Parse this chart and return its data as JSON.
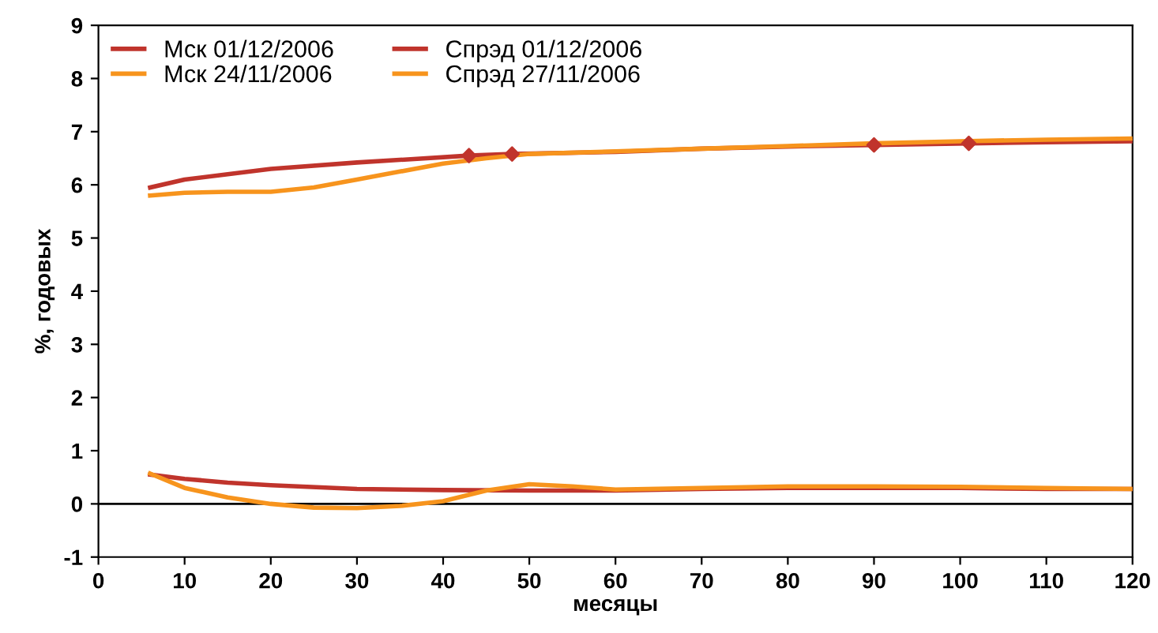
{
  "chart_data": {
    "type": "line",
    "xlabel": "месяцы",
    "ylabel": "%, годовых",
    "xlim": [
      0,
      120
    ],
    "xticks": [
      0,
      10,
      20,
      30,
      40,
      50,
      60,
      70,
      80,
      90,
      100,
      110,
      120
    ],
    "ylim": [
      -1,
      9
    ],
    "yticks": [
      -1,
      0,
      1,
      2,
      3,
      4,
      5,
      6,
      7,
      8,
      9
    ],
    "grid": false,
    "legend": "top left",
    "marker": "none",
    "line_style": "solid",
    "ref_lines": [
      {
        "axis": "y",
        "value": 0,
        "color": "#000000"
      }
    ],
    "series": [
      {
        "name": "Мск 01/12/2006",
        "color": "#c0342c",
        "x": [
          6,
          10,
          15,
          20,
          30,
          43,
          48,
          60,
          70,
          80,
          90,
          101,
          110,
          120
        ],
        "values": [
          5.95,
          6.1,
          6.2,
          6.3,
          6.42,
          6.55,
          6.58,
          6.62,
          6.68,
          6.72,
          6.75,
          6.78,
          6.8,
          6.82
        ]
      },
      {
        "name": "Мск 24/11/2006",
        "color": "#f7941d",
        "x": [
          6,
          10,
          15,
          20,
          25,
          30,
          35,
          40,
          45,
          50,
          60,
          70,
          80,
          90,
          100,
          110,
          120
        ],
        "values": [
          5.8,
          5.85,
          5.87,
          5.87,
          5.95,
          6.1,
          6.25,
          6.4,
          6.5,
          6.58,
          6.63,
          6.68,
          6.73,
          6.78,
          6.82,
          6.85,
          6.87
        ]
      },
      {
        "name": "Спрэд 01/12/2006",
        "color": "#c0342c",
        "x": [
          6,
          10,
          15,
          20,
          30,
          40,
          50,
          60,
          70,
          80,
          90,
          100,
          110,
          120
        ],
        "values": [
          0.55,
          0.47,
          0.4,
          0.35,
          0.28,
          0.26,
          0.25,
          0.25,
          0.28,
          0.3,
          0.3,
          0.3,
          0.28,
          0.28
        ]
      },
      {
        "name": "Спрэд 27/11/2006",
        "color": "#f7941d",
        "x": [
          6,
          10,
          15,
          20,
          25,
          30,
          35,
          40,
          45,
          50,
          55,
          60,
          70,
          80,
          90,
          100,
          110,
          120
        ],
        "values": [
          0.57,
          0.3,
          0.12,
          0.0,
          -0.07,
          -0.08,
          -0.04,
          0.05,
          0.25,
          0.37,
          0.33,
          0.27,
          0.3,
          0.33,
          0.33,
          0.32,
          0.3,
          0.28
        ]
      },
      {
        "type": "scatter",
        "marker": "diamond",
        "color": "#c0342c",
        "x": [
          43,
          48,
          90,
          101
        ],
        "values": [
          6.55,
          6.58,
          6.75,
          6.78
        ]
      }
    ]
  }
}
